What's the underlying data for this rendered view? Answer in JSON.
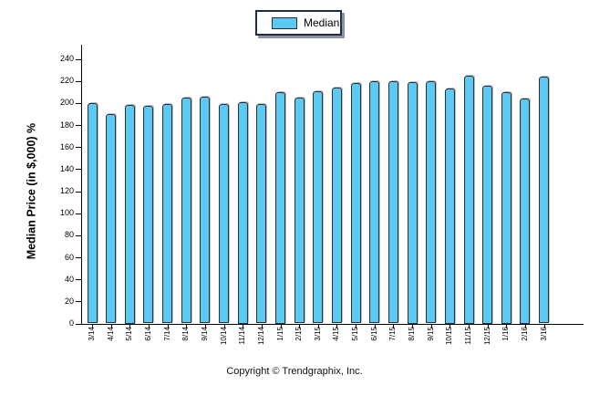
{
  "legend": {
    "label": "Median",
    "swatch_color": "#5cc9f2",
    "border_color": "#1f2c50"
  },
  "footer": {
    "copyright": "Copyright © Trendgraphix, Inc."
  },
  "colors": {
    "bar_fill": "#5cc9f2",
    "bar_border": "#2b2f38",
    "axis": "#000000",
    "background": "#ffffff",
    "legend_shadow": "#8c93a0"
  },
  "chart_data": {
    "type": "bar",
    "title": "",
    "xlabel": "",
    "ylabel": "Median Price (in $,000) %",
    "ylim": [
      0,
      240
    ],
    "ytick_step": 20,
    "grid": false,
    "legend_position": "top-center",
    "series_name": "Median",
    "categories": [
      "3/14",
      "4/14",
      "5/14",
      "6/14",
      "7/14",
      "8/14",
      "9/14",
      "10/14",
      "11/14",
      "12/14",
      "1/15",
      "2/15",
      "3/15",
      "4/15",
      "5/15",
      "6/15",
      "7/15",
      "8/15",
      "9/15",
      "10/15",
      "11/15",
      "12/15",
      "1/16",
      "2/16",
      "3/16"
    ],
    "values": [
      200,
      190,
      198,
      197,
      199,
      205,
      206,
      199,
      201,
      199,
      210,
      205,
      211,
      214,
      218,
      220,
      220,
      219,
      220,
      213,
      225,
      216,
      210,
      204,
      224
    ]
  }
}
